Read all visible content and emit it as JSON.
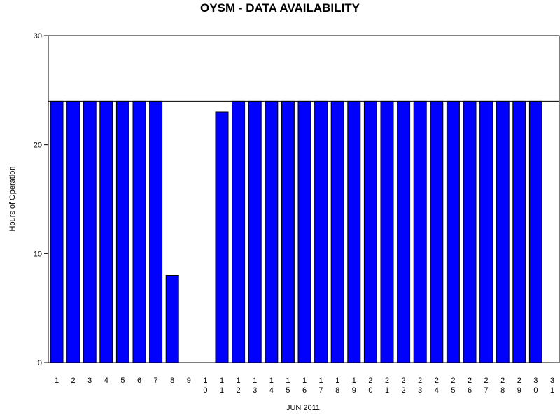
{
  "chart_data": {
    "type": "bar",
    "title": "OYSM - DATA AVAILABILITY",
    "xlabel": "JUN 2011",
    "ylabel": "Hours of Operation",
    "categories": [
      "1",
      "2",
      "3",
      "4",
      "5",
      "6",
      "7",
      "8",
      "9",
      "10",
      "11",
      "12",
      "13",
      "14",
      "15",
      "16",
      "17",
      "18",
      "19",
      "20",
      "21",
      "22",
      "23",
      "24",
      "25",
      "26",
      "27",
      "28",
      "29",
      "30",
      "31"
    ],
    "values": [
      24,
      24,
      24,
      24,
      24,
      24,
      24,
      8,
      0,
      0,
      23,
      24,
      24,
      24,
      24,
      24,
      24,
      24,
      24,
      24,
      24,
      24,
      24,
      24,
      24,
      24,
      24,
      24,
      24,
      24,
      null
    ],
    "ylim": [
      0,
      30
    ],
    "yticks": [
      0,
      10,
      20,
      30
    ],
    "reference_line": 24,
    "grid": false,
    "bar_color": "#0000ff",
    "bar_edge_color": "#000000"
  }
}
